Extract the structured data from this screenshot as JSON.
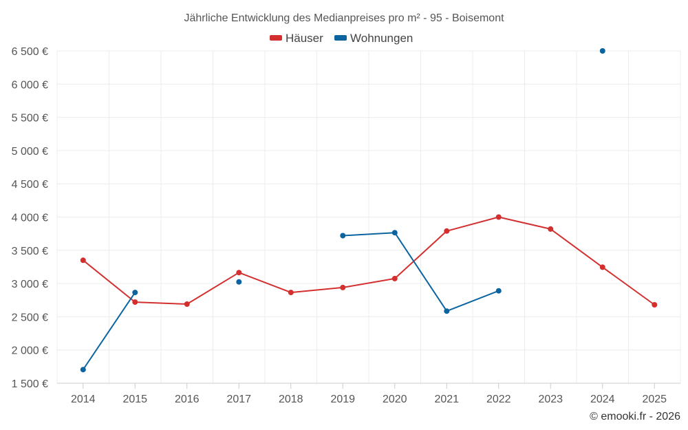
{
  "chart_data": {
    "type": "line",
    "title": "Jährliche Entwicklung des Medianpreises pro m² - 95 - Boisemont",
    "categories": [
      "2014",
      "2015",
      "2016",
      "2017",
      "2018",
      "2019",
      "2020",
      "2021",
      "2022",
      "2023",
      "2024",
      "2025"
    ],
    "y_ticks": [
      "1 500 €",
      "2 000 €",
      "2 500 €",
      "3 000 €",
      "3 500 €",
      "4 000 €",
      "4 500 €",
      "5 000 €",
      "5 500 €",
      "6 000 €",
      "6 500 €"
    ],
    "ylim": [
      1500,
      6500
    ],
    "grid": true,
    "legend_position": "top-center",
    "series": [
      {
        "name": "Häuser",
        "color": "#d32f2f",
        "values": [
          3350,
          2720,
          2690,
          3165,
          2865,
          2940,
          3075,
          3790,
          4000,
          3820,
          3245,
          2680
        ]
      },
      {
        "name": "Wohnungen",
        "color": "#0b64a0",
        "values": [
          1705,
          2865,
          null,
          3025,
          null,
          3720,
          3765,
          2585,
          2890,
          null,
          6500,
          null
        ]
      }
    ],
    "credit": "© emooki.fr - 2026"
  }
}
